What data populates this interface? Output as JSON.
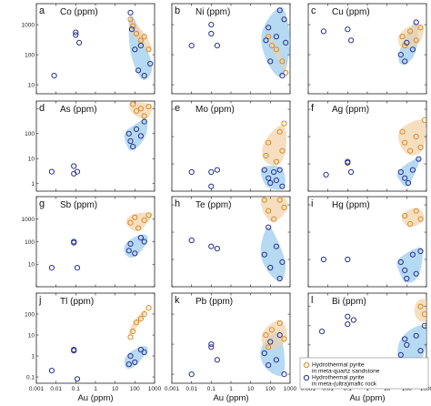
{
  "colors": {
    "sandstone": "#d98a2b",
    "sandstone_fill": "#f2d2a6",
    "mafic": "#26308f",
    "mafic_fill": "#a9d3f0"
  },
  "xaxis": {
    "label": "Au (ppm)",
    "ticks": [
      {
        "v": 0.001,
        "label": "0.001"
      },
      {
        "v": 0.01,
        "label": "0.01"
      },
      {
        "v": 0.1,
        "label": "0.1"
      },
      {
        "v": 1,
        "label": "1"
      },
      {
        "v": 10,
        "label": "10"
      },
      {
        "v": 100,
        "label": "100"
      },
      {
        "v": 1000,
        "label": "1000"
      }
    ]
  },
  "legend": {
    "sandstone": "Hydrothermal pyrite in meta-quartz sandstone",
    "sandstone_line1": "Hydrothermal pyrite",
    "sandstone_line2": "in meta-quartz sandstone",
    "mafic": "Hydrothermal pyrite in meta-(ultra)mafic rock",
    "mafic_line1": "Hydrothermal pyrite",
    "mafic_line2": "in meta-(ultra)mafic rock"
  },
  "chart_data": [
    {
      "type": "scatter",
      "letter": "a",
      "title": "Co (ppm)",
      "xlabel": "",
      "ylim": [
        5,
        5000
      ],
      "yticks": [
        {
          "v": 10,
          "label": "10"
        },
        {
          "v": 100,
          "label": "100"
        },
        {
          "v": 1000,
          "label": "1000"
        }
      ],
      "series": [
        {
          "key": "sandstone",
          "points": [
            [
              60,
              1500
            ],
            [
              80,
              900
            ],
            [
              120,
              500
            ],
            [
              200,
              300
            ],
            [
              300,
              400
            ],
            [
              500,
              150
            ]
          ]
        },
        {
          "key": "mafic",
          "points": [
            [
              0.008,
              20
            ],
            [
              0.1,
              550
            ],
            [
              0.1,
              450
            ],
            [
              0.15,
              250
            ],
            [
              60,
              2500
            ],
            [
              70,
              700
            ],
            [
              100,
              150
            ],
            [
              150,
              30
            ],
            [
              200,
              200
            ],
            [
              300,
              20
            ],
            [
              600,
              50
            ]
          ]
        }
      ]
    },
    {
      "type": "scatter",
      "letter": "b",
      "title": "Ni (ppm)",
      "xlabel": "",
      "ylim": [
        5,
        5000
      ],
      "yticks": [],
      "series": [
        {
          "key": "sandstone",
          "points": [
            [
              80,
              400
            ],
            [
              120,
              200
            ],
            [
              200,
              150
            ],
            [
              400,
              60
            ],
            [
              600,
              25
            ]
          ]
        },
        {
          "key": "mafic",
          "points": [
            [
              0.01,
              200
            ],
            [
              0.1,
              1000
            ],
            [
              0.1,
              500
            ],
            [
              0.2,
              200
            ],
            [
              60,
              300
            ],
            [
              80,
              800
            ],
            [
              100,
              60
            ],
            [
              200,
              400
            ],
            [
              300,
              3000
            ],
            [
              500,
              1500
            ],
            [
              600,
              250
            ],
            [
              400,
              20
            ]
          ]
        }
      ]
    },
    {
      "type": "scatter",
      "letter": "c",
      "title": "Cu (ppm)",
      "xlabel": "",
      "ylim": [
        5,
        5000
      ],
      "yticks": [],
      "series": [
        {
          "key": "sandstone",
          "points": [
            [
              60,
              400
            ],
            [
              80,
              200
            ],
            [
              150,
              600
            ],
            [
              300,
              300
            ],
            [
              500,
              800
            ]
          ]
        },
        {
          "key": "mafic",
          "points": [
            [
              0.006,
              600
            ],
            [
              0.1,
              700
            ],
            [
              0.15,
              300
            ],
            [
              50,
              100
            ],
            [
              80,
              60
            ],
            [
              100,
              250
            ],
            [
              200,
              150
            ],
            [
              300,
              1200
            ]
          ]
        }
      ]
    },
    {
      "type": "scatter",
      "letter": "d",
      "title": "As (ppm)",
      "xlabel": "",
      "ylim": [
        0.5,
        2000
      ],
      "yticks": [
        {
          "v": 1,
          "label": "1"
        },
        {
          "v": 10,
          "label": "10"
        },
        {
          "v": 100,
          "label": "100"
        }
      ],
      "series": [
        {
          "key": "sandstone",
          "points": [
            [
              80,
              1500
            ],
            [
              120,
              800
            ],
            [
              200,
              1000
            ],
            [
              300,
              500
            ],
            [
              500,
              1200
            ]
          ]
        },
        {
          "key": "mafic",
          "points": [
            [
              0.006,
              3
            ],
            [
              0.08,
              5
            ],
            [
              0.08,
              2.5
            ],
            [
              0.12,
              3
            ],
            [
              50,
              100
            ],
            [
              60,
              50
            ],
            [
              80,
              30
            ],
            [
              120,
              150
            ],
            [
              200,
              80
            ],
            [
              300,
              300
            ]
          ]
        }
      ]
    },
    {
      "type": "scatter",
      "letter": "e",
      "title": "Mo (ppm)",
      "xlabel": "",
      "ylim": [
        0.1,
        200
      ],
      "yticks": [],
      "series": [
        {
          "key": "sandstone",
          "points": [
            [
              60,
              2
            ],
            [
              80,
              6
            ],
            [
              200,
              1.2
            ],
            [
              300,
              15
            ],
            [
              500,
              30
            ],
            [
              400,
              3
            ]
          ]
        },
        {
          "key": "mafic",
          "points": [
            [
              0.01,
              0.5
            ],
            [
              0.1,
              0.5
            ],
            [
              0.1,
              0.15
            ],
            [
              0.2,
              0.6
            ],
            [
              50,
              0.6
            ],
            [
              80,
              0.3
            ],
            [
              100,
              0.2
            ],
            [
              150,
              0.5
            ],
            [
              200,
              0.25
            ],
            [
              300,
              0.6
            ],
            [
              400,
              0.15
            ]
          ]
        }
      ]
    },
    {
      "type": "scatter",
      "letter": "f",
      "title": "Ag (ppm)",
      "xlabel": "",
      "ylim": [
        0.1,
        200
      ],
      "yticks": [],
      "series": [
        {
          "key": "sandstone",
          "points": [
            [
              60,
              15
            ],
            [
              80,
              6
            ],
            [
              150,
              3
            ],
            [
              300,
              10
            ],
            [
              500,
              4
            ],
            [
              800,
              40
            ]
          ]
        },
        {
          "key": "mafic",
          "points": [
            [
              0.008,
              0.4
            ],
            [
              0.1,
              1.2
            ],
            [
              0.1,
              1.1
            ],
            [
              0.15,
              0.5
            ],
            [
              50,
              0.5
            ],
            [
              80,
              0.3
            ],
            [
              120,
              0.2
            ],
            [
              200,
              0.6
            ],
            [
              400,
              1.5
            ]
          ]
        }
      ]
    },
    {
      "type": "scatter",
      "letter": "g",
      "title": "Sb (ppm)",
      "xlabel": "",
      "ylim": [
        1,
        10000
      ],
      "yticks": [
        {
          "v": 10,
          "label": "10"
        },
        {
          "v": 100,
          "label": "100"
        },
        {
          "v": 1000,
          "label": "1000"
        }
      ],
      "series": [
        {
          "key": "sandstone",
          "points": [
            [
              60,
              700
            ],
            [
              100,
              1200
            ],
            [
              150,
              400
            ],
            [
              300,
              900
            ],
            [
              500,
              1500
            ]
          ]
        },
        {
          "key": "mafic",
          "points": [
            [
              0.006,
              7
            ],
            [
              0.08,
              100
            ],
            [
              0.08,
              90
            ],
            [
              0.12,
              7
            ],
            [
              50,
              40
            ],
            [
              60,
              80
            ],
            [
              100,
              30
            ],
            [
              200,
              150
            ],
            [
              300,
              100
            ]
          ]
        }
      ]
    },
    {
      "type": "scatter",
      "letter": "h",
      "title": "Te (ppm)",
      "xlabel": "",
      "ylim": [
        0.1,
        200
      ],
      "yticks": [],
      "series": [
        {
          "key": "sandstone",
          "points": [
            [
              50,
              150
            ],
            [
              80,
              60
            ],
            [
              150,
              30
            ],
            [
              300,
              150
            ],
            [
              500,
              80
            ]
          ]
        },
        {
          "key": "mafic",
          "points": [
            [
              0.01,
              5
            ],
            [
              0.1,
              3
            ],
            [
              0.2,
              2.5
            ],
            [
              50,
              1.5
            ],
            [
              80,
              15
            ],
            [
              100,
              0.5
            ],
            [
              200,
              3
            ],
            [
              300,
              0.2
            ],
            [
              400,
              0.8
            ]
          ]
        }
      ]
    },
    {
      "type": "scatter",
      "letter": "i",
      "title": "Hg (ppm)",
      "xlabel": "",
      "ylim": [
        0.1,
        200
      ],
      "yticks": [],
      "series": [
        {
          "key": "sandstone",
          "points": [
            [
              80,
              40
            ],
            [
              150,
              20
            ],
            [
              300,
              60
            ],
            [
              500,
              30
            ]
          ]
        },
        {
          "key": "mafic",
          "points": [
            [
              0.006,
              1
            ],
            [
              0.1,
              1
            ],
            [
              50,
              0.8
            ],
            [
              80,
              0.4
            ],
            [
              100,
              0.2
            ],
            [
              200,
              1.5
            ],
            [
              300,
              0.3
            ],
            [
              500,
              2
            ]
          ]
        }
      ]
    },
    {
      "type": "scatter",
      "letter": "j",
      "title": "Tl (ppm)",
      "xlabel": "Au (ppm)",
      "ylim": [
        0.05,
        1000
      ],
      "yticks": [
        {
          "v": 0.1,
          "label": "0.1"
        },
        {
          "v": 1,
          "label": "1"
        },
        {
          "v": 10,
          "label": "10"
        },
        {
          "v": 100,
          "label": "100"
        }
      ],
      "series": [
        {
          "key": "sandstone",
          "points": [
            [
              60,
              8
            ],
            [
              80,
              15
            ],
            [
              120,
              40
            ],
            [
              200,
              60
            ],
            [
              300,
              100
            ],
            [
              500,
              200
            ]
          ]
        },
        {
          "key": "mafic",
          "points": [
            [
              0.006,
              0.2
            ],
            [
              0.08,
              2
            ],
            [
              0.08,
              1.8
            ],
            [
              0.12,
              0.08
            ],
            [
              50,
              0.4
            ],
            [
              60,
              1
            ],
            [
              100,
              0.5
            ],
            [
              200,
              2
            ],
            [
              300,
              1.5
            ]
          ]
        }
      ]
    },
    {
      "type": "scatter",
      "letter": "k",
      "title": "Pb (ppm)",
      "xlabel": "Au (ppm)",
      "ylim": [
        0.5,
        500
      ],
      "yticks": [],
      "series": [
        {
          "key": "sandstone",
          "points": [
            [
              60,
              20
            ],
            [
              80,
              8
            ],
            [
              120,
              30
            ],
            [
              300,
              50
            ],
            [
              500,
              15
            ]
          ]
        },
        {
          "key": "mafic",
          "points": [
            [
              0.01,
              1
            ],
            [
              0.1,
              10
            ],
            [
              0.1,
              8
            ],
            [
              0.2,
              3
            ],
            [
              50,
              5
            ],
            [
              80,
              2
            ],
            [
              100,
              12
            ],
            [
              200,
              3
            ],
            [
              300,
              20
            ],
            [
              500,
              1
            ]
          ]
        }
      ]
    },
    {
      "type": "scatter",
      "letter": "l",
      "title": "Bi (ppm)",
      "xlabel": "Au (ppm)",
      "ylim": [
        0.01,
        500
      ],
      "yticks": [],
      "series": [
        {
          "key": "sandstone",
          "points": [
            [
              500,
              100
            ],
            [
              800,
              40
            ]
          ]
        },
        {
          "key": "mafic",
          "points": [
            [
              0.005,
              5
            ],
            [
              0.1,
              30
            ],
            [
              0.1,
              12
            ],
            [
              0.2,
              20
            ],
            [
              50,
              0.3
            ],
            [
              80,
              2
            ],
            [
              100,
              1
            ],
            [
              200,
              0.1
            ],
            [
              300,
              3
            ],
            [
              500,
              0.5
            ],
            [
              800,
              10
            ]
          ]
        }
      ]
    }
  ]
}
